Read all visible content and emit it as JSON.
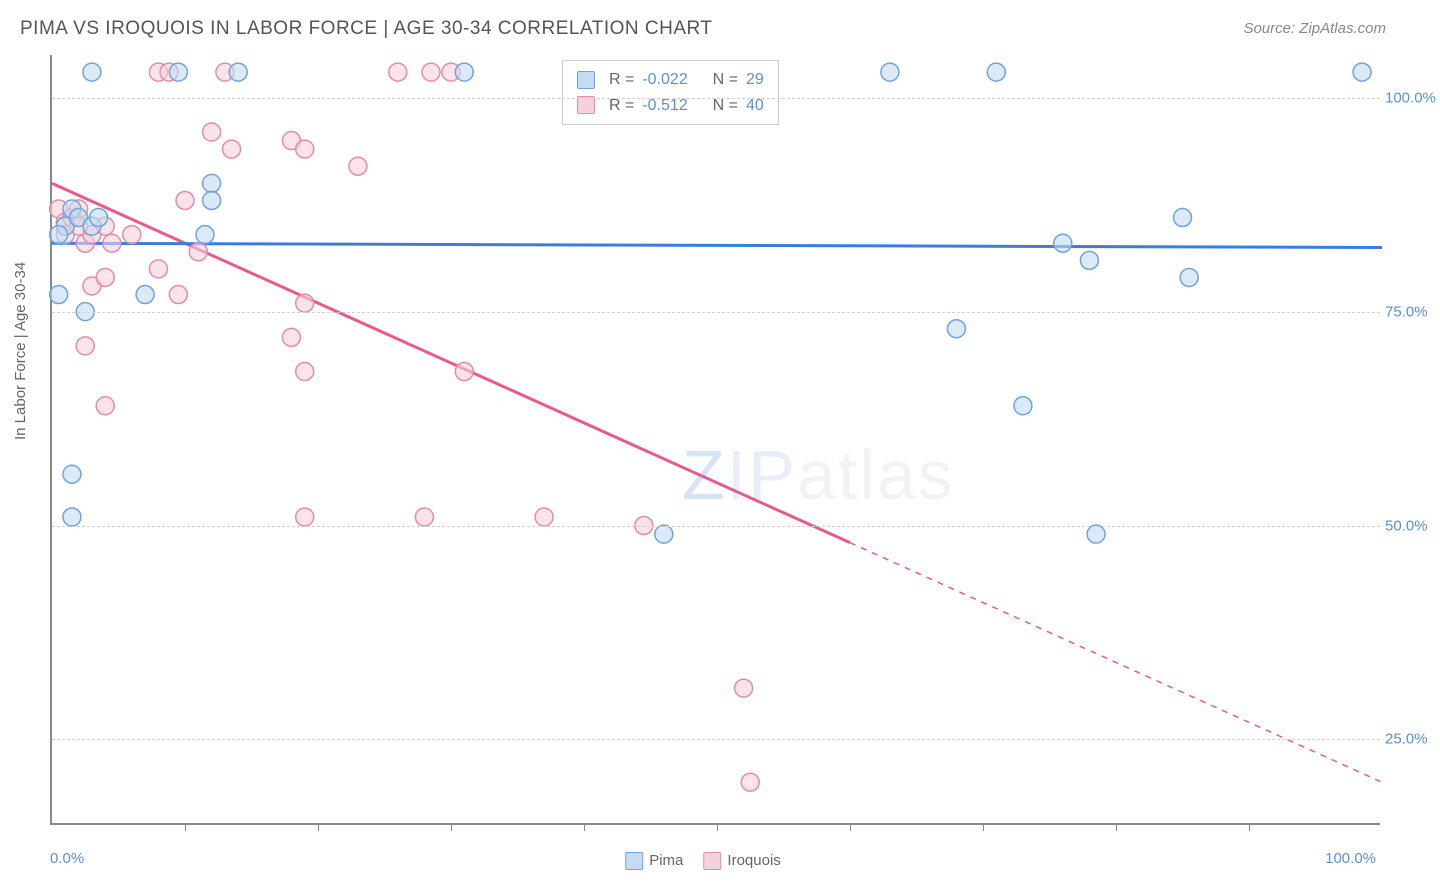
{
  "title": "PIMA VS IROQUOIS IN LABOR FORCE | AGE 30-34 CORRELATION CHART",
  "source": "Source: ZipAtlas.com",
  "ylabel": "In Labor Force | Age 30-34",
  "watermark": {
    "z": "Z",
    "ip": "IP",
    "rest": "atlas"
  },
  "chart": {
    "type": "scatter-with-regression",
    "xlim": [
      0,
      100
    ],
    "ylim": [
      15,
      105
    ],
    "ytick_values": [
      25,
      50,
      75,
      100
    ],
    "ytick_labels": [
      "25.0%",
      "50.0%",
      "75.0%",
      "100.0%"
    ],
    "xtick_values": [
      10,
      20,
      30,
      40,
      50,
      60,
      70,
      80,
      90
    ],
    "xaxis_min_label": "0.0%",
    "xaxis_max_label": "100.0%",
    "background_color": "#ffffff",
    "grid_color": "#d0d0d0",
    "marker_radius": 9,
    "marker_stroke_width": 1.5,
    "line_width": 3,
    "series": {
      "pima": {
        "label": "Pima",
        "color_fill": "#c5dbf2",
        "color_stroke": "#6fa3dd",
        "line_color": "#3b7dd8",
        "R": "-0.022",
        "N": "29",
        "regression_solid": {
          "x1": 0,
          "y1": 83,
          "x2": 100,
          "y2": 82.5
        },
        "points": [
          {
            "x": 3,
            "y": 103
          },
          {
            "x": 9.5,
            "y": 103
          },
          {
            "x": 14,
            "y": 103
          },
          {
            "x": 63,
            "y": 103
          },
          {
            "x": 71,
            "y": 103
          },
          {
            "x": 98.5,
            "y": 103
          },
          {
            "x": 1,
            "y": 85
          },
          {
            "x": 1.5,
            "y": 87
          },
          {
            "x": 2,
            "y": 86
          },
          {
            "x": 3,
            "y": 85
          },
          {
            "x": 3.5,
            "y": 86
          },
          {
            "x": 12,
            "y": 90
          },
          {
            "x": 12,
            "y": 88
          },
          {
            "x": 0.5,
            "y": 77
          },
          {
            "x": 7,
            "y": 77
          },
          {
            "x": 2.5,
            "y": 75
          },
          {
            "x": 1.5,
            "y": 56
          },
          {
            "x": 1.5,
            "y": 51
          },
          {
            "x": 46,
            "y": 49
          },
          {
            "x": 68,
            "y": 73
          },
          {
            "x": 73,
            "y": 64
          },
          {
            "x": 76,
            "y": 83
          },
          {
            "x": 78,
            "y": 81
          },
          {
            "x": 78.5,
            "y": 49
          },
          {
            "x": 85,
            "y": 86
          },
          {
            "x": 85.5,
            "y": 79
          },
          {
            "x": 31,
            "y": 103
          },
          {
            "x": 0.5,
            "y": 84
          },
          {
            "x": 11.5,
            "y": 84
          }
        ]
      },
      "iroquois": {
        "label": "Iroquois",
        "color_fill": "#f6d1db",
        "color_stroke": "#e48ca6",
        "line_color": "#e85a8a",
        "R": "-0.512",
        "N": "40",
        "regression_solid": {
          "x1": 0,
          "y1": 90,
          "x2": 60,
          "y2": 48
        },
        "regression_dashed": {
          "x1": 60,
          "y1": 48,
          "x2": 100,
          "y2": 20
        },
        "points": [
          {
            "x": 8,
            "y": 103
          },
          {
            "x": 8.8,
            "y": 103
          },
          {
            "x": 13,
            "y": 103
          },
          {
            "x": 26,
            "y": 103
          },
          {
            "x": 28.5,
            "y": 103
          },
          {
            "x": 30,
            "y": 103
          },
          {
            "x": 12,
            "y": 96
          },
          {
            "x": 13.5,
            "y": 94
          },
          {
            "x": 18,
            "y": 95
          },
          {
            "x": 19,
            "y": 94
          },
          {
            "x": 23,
            "y": 92
          },
          {
            "x": 10,
            "y": 88
          },
          {
            "x": 0.5,
            "y": 87
          },
          {
            "x": 1,
            "y": 85.5
          },
          {
            "x": 1.5,
            "y": 86
          },
          {
            "x": 2,
            "y": 87
          },
          {
            "x": 1,
            "y": 84
          },
          {
            "x": 2.5,
            "y": 83
          },
          {
            "x": 3,
            "y": 84
          },
          {
            "x": 4,
            "y": 85
          },
          {
            "x": 4.5,
            "y": 83
          },
          {
            "x": 6,
            "y": 84
          },
          {
            "x": 3,
            "y": 78
          },
          {
            "x": 4,
            "y": 79
          },
          {
            "x": 8,
            "y": 80
          },
          {
            "x": 9.5,
            "y": 77
          },
          {
            "x": 11,
            "y": 82
          },
          {
            "x": 2.5,
            "y": 71
          },
          {
            "x": 19,
            "y": 76
          },
          {
            "x": 4,
            "y": 64
          },
          {
            "x": 19,
            "y": 68
          },
          {
            "x": 31,
            "y": 68
          },
          {
            "x": 19,
            "y": 51
          },
          {
            "x": 28,
            "y": 51
          },
          {
            "x": 37,
            "y": 51
          },
          {
            "x": 44.5,
            "y": 50
          },
          {
            "x": 52,
            "y": 31
          },
          {
            "x": 52.5,
            "y": 20
          },
          {
            "x": 18,
            "y": 72
          },
          {
            "x": 2,
            "y": 85
          }
        ]
      }
    }
  },
  "legend_top": [
    {
      "fill": "#c5dbf2",
      "stroke": "#6fa3dd",
      "R": "-0.022",
      "N": "29"
    },
    {
      "fill": "#f6d1db",
      "stroke": "#e48ca6",
      "R": "-0.512",
      "N": "40"
    }
  ],
  "legend_bottom": [
    {
      "fill": "#c5dbf2",
      "stroke": "#6fa3dd",
      "label": "Pima"
    },
    {
      "fill": "#f6d1db",
      "stroke": "#e48ca6",
      "label": "Iroquois"
    }
  ]
}
